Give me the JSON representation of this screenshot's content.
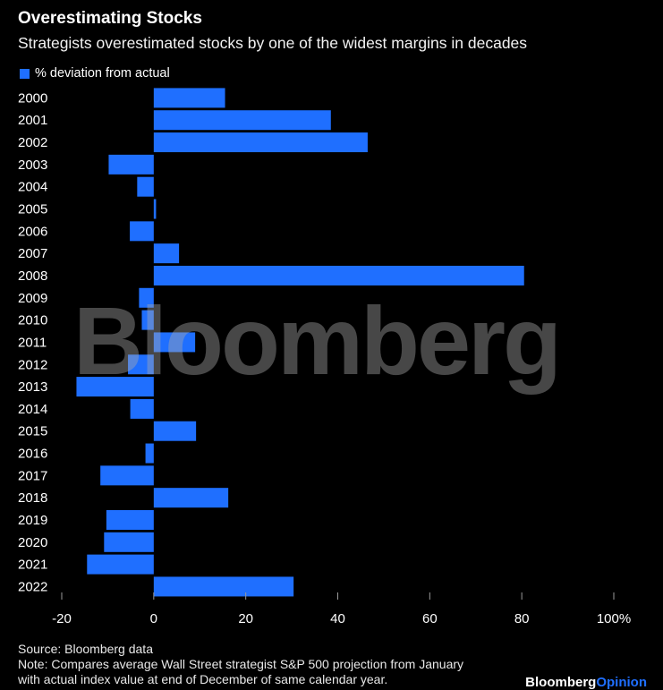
{
  "header": {
    "title": "Overestimating Stocks",
    "subtitle": "Strategists overestimated stocks by one of the widest margins in decades"
  },
  "legend": {
    "label": "% deviation from actual"
  },
  "watermark": "Bloomberg",
  "footer": {
    "source": "Source: Bloomberg data",
    "note_line1": "Note: Compares average Wall Street strategist S&P 500 projection from January",
    "note_line2": "with actual index value at end of December of same calendar year.",
    "brand_main": "Bloomberg",
    "brand_accent": "Opinion"
  },
  "colors": {
    "bar": "#1f6fff",
    "background": "#000000",
    "tick": "#9a9a9a"
  },
  "chart_data": {
    "type": "bar",
    "orientation": "horizontal",
    "title": "Overestimating Stocks",
    "xlabel": "% deviation from actual",
    "ylabel": "",
    "xlim": [
      -20,
      100
    ],
    "x_ticks": [
      -20,
      0,
      20,
      40,
      60,
      80,
      100
    ],
    "x_tick_labels": [
      "-20",
      "0",
      "20",
      "40",
      "60",
      "80",
      "100%"
    ],
    "categories": [
      "2000",
      "2001",
      "2002",
      "2003",
      "2004",
      "2005",
      "2006",
      "2007",
      "2008",
      "2009",
      "2010",
      "2011",
      "2012",
      "2013",
      "2014",
      "2015",
      "2016",
      "2017",
      "2018",
      "2019",
      "2020",
      "2021",
      "2022"
    ],
    "series": [
      {
        "name": "% deviation from actual",
        "values": [
          15.5,
          38.5,
          46.5,
          -9.8,
          -3.6,
          0.5,
          -5.2,
          5.5,
          80.5,
          -3.2,
          -2.6,
          9,
          -5.6,
          -16.8,
          -5.1,
          9.2,
          -1.8,
          -11.6,
          16.2,
          -10.3,
          -10.8,
          -14.5,
          30.4
        ]
      }
    ]
  }
}
